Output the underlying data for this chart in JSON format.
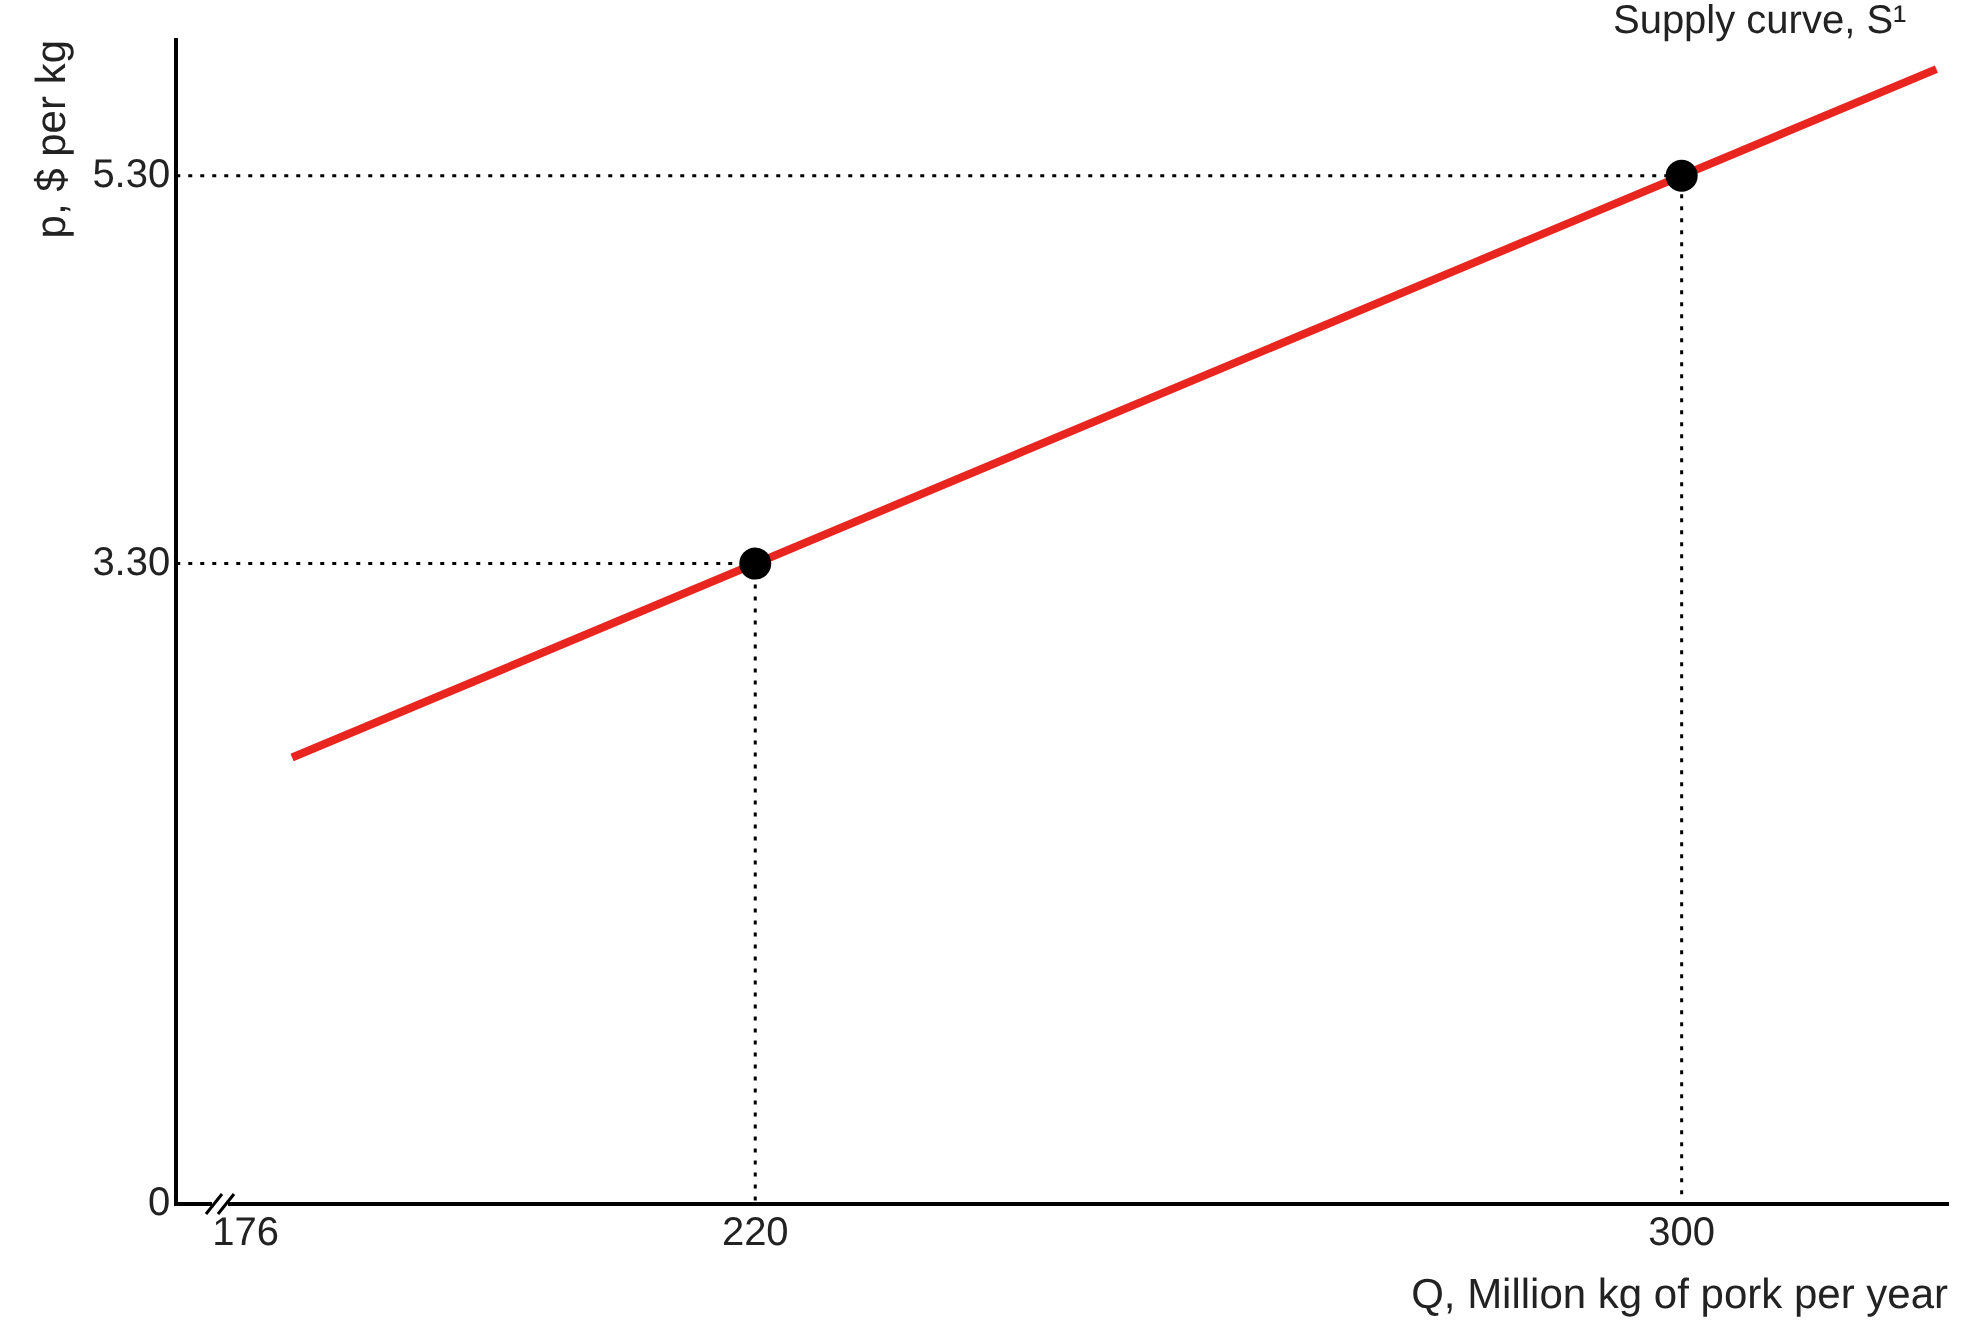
{
  "chart_data": {
    "type": "line",
    "xlabel": "Q, Million kg of pork per year",
    "ylabel": "p, $ per kg",
    "xlim": [
      170,
      323
    ],
    "xticks": [
      176,
      220,
      300
    ],
    "ylim": [
      0,
      6
    ],
    "yticks": [
      0,
      {
        "value": 3.3,
        "label": "3.30"
      },
      {
        "value": 5.3,
        "label": "5.30"
      }
    ],
    "grid": false,
    "legend": false,
    "series": [
      {
        "color": "#e8251f",
        "x": [
          180,
          322
        ],
        "values": [
          2.3,
          5.85
        ],
        "marker": "none",
        "line_style": "solid"
      },
      {
        "type": "line",
        "color": "#000000",
        "x": [
          170,
          220,
          220
        ],
        "values": [
          3.3,
          3.3,
          0
        ],
        "marker": "none",
        "line_style": "dotted"
      },
      {
        "type": "line",
        "color": "#000000",
        "x": [
          170,
          300,
          300
        ],
        "values": [
          5.3,
          5.3,
          0
        ],
        "marker": "none",
        "line_style": "dotted"
      },
      {
        "type": "scatter",
        "color": "#000000",
        "x": [
          220,
          300
        ],
        "values": [
          3.3,
          5.3
        ],
        "marker": "circle"
      }
    ],
    "annotations": [
      {
        "text": "Supply curve, S¹",
        "x": 322,
        "y": 5.85
      }
    ]
  }
}
